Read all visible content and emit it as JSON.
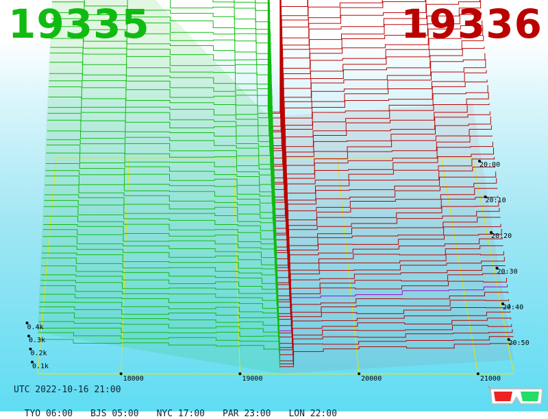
{
  "header": {
    "bid_price": "19335",
    "ask_price": "19336"
  },
  "colors": {
    "bid": "#11bb11",
    "ask": "#bb0000",
    "grid": "#e6e600",
    "baseline": "#aa00cc"
  },
  "chart_data": {
    "type": "area",
    "description_kind": "3d-depth-chart",
    "x_axis": {
      "ticks": [
        18000,
        19000,
        20000,
        21000
      ],
      "tick_labels": [
        "18000",
        "19000",
        "20000",
        "21000"
      ],
      "range": [
        17300,
        21300
      ]
    },
    "y_axis": {
      "tick_labels": [
        "0.1k",
        "0.2k",
        "0.3k",
        "0.4k"
      ],
      "ticks": [
        100,
        200,
        300,
        400
      ]
    },
    "z_axis": {
      "tick_labels": [
        "20:00",
        "20:10",
        "20:20",
        "20:30",
        "20:40",
        "20:50"
      ]
    },
    "mid_price": 19335.5,
    "series": [
      {
        "side": "bid",
        "x": [
          17300,
          17600,
          18000,
          18400,
          18800,
          19000,
          19200,
          19335
        ],
        "values": [
          700,
          660,
          620,
          600,
          590,
          560,
          530,
          120
        ]
      },
      {
        "side": "ask",
        "x": [
          19336,
          19450,
          19700,
          20000,
          20400,
          20800,
          21100,
          21300
        ],
        "values": [
          120,
          480,
          520,
          540,
          560,
          600,
          620,
          640
        ]
      }
    ],
    "grid": true
  },
  "footer": {
    "utc": "UTC 2022-10-16 21:00",
    "zones": [
      "TYO 06:00",
      "BJS 05:00",
      "NYC 17:00",
      "PAR 23:00",
      "LON 22:00"
    ]
  }
}
